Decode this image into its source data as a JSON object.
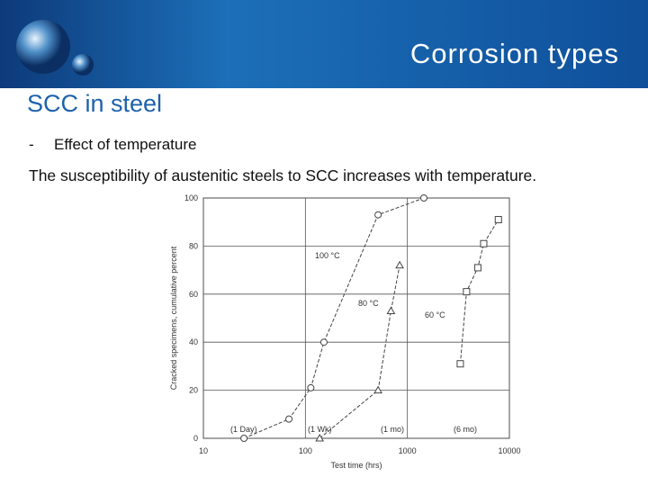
{
  "header": {
    "title": "Corrosion types"
  },
  "subtitle": "SCC in steel",
  "bullet": {
    "marker": "-",
    "text": "Effect of temperature"
  },
  "body": "The susceptibility of austenitic steels to SCC increases with temperature.",
  "chart_data": {
    "type": "scatter",
    "xlabel": "Test time (hrs)",
    "ylabel": "Cracked specimens, cumulative percent",
    "xlim": [
      10,
      10000
    ],
    "xticks": [
      10,
      100,
      1000,
      10000
    ],
    "xscale": "log",
    "ylim": [
      0,
      100
    ],
    "yticks": [
      0,
      20,
      40,
      60,
      80,
      100
    ],
    "grid": true,
    "series": [
      {
        "name": "100 °C",
        "marker": "circle",
        "color": "#444444",
        "x": [
          25,
          69,
          113,
          152,
          516,
          1450
        ],
        "values": [
          0,
          8,
          21,
          40,
          93,
          100
        ]
      },
      {
        "name": "80 °C",
        "marker": "triangle",
        "color": "#444444",
        "x": [
          138,
          516,
          690,
          840
        ],
        "values": [
          0,
          20,
          53,
          72
        ]
      },
      {
        "name": "60 °C",
        "marker": "square",
        "color": "#444444",
        "x": [
          3300,
          3800,
          4900,
          5600,
          7800
        ],
        "values": [
          31,
          61,
          71,
          81,
          91
        ]
      }
    ],
    "annotations": [
      "(1 Day)",
      "(1 Wk)",
      "(1 mo)",
      "(6 mo)"
    ]
  }
}
